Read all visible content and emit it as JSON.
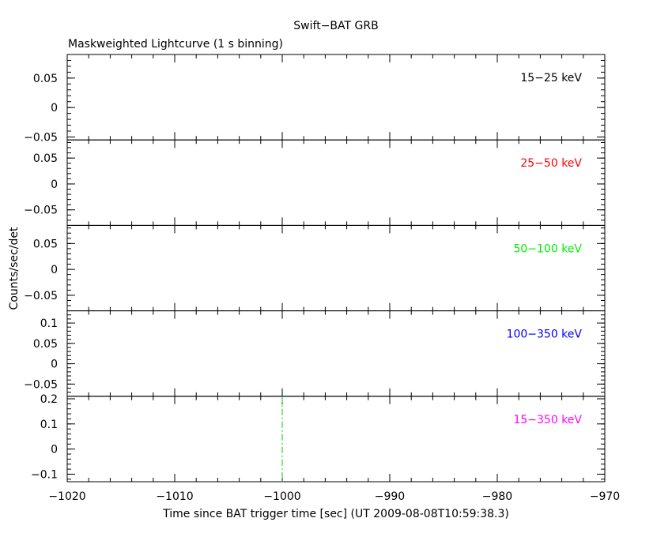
{
  "chart_data": {
    "type": "line",
    "title": "Swift−BAT GRB",
    "subtitle": "Maskweighted Lightcurve (1 s binning)",
    "xlabel": "Time since BAT trigger time [sec] (UT 2009-08-08T10:59:38.3)",
    "ylabel": "Counts/sec/det",
    "xlim": [
      -1020,
      -970
    ],
    "x_ticks": [
      -1020,
      -1010,
      -1000,
      -990,
      -980,
      -970
    ],
    "x_tick_labels": [
      "−1020",
      "−1010",
      "−1000",
      "−990",
      "−980",
      "−970"
    ],
    "trigger_marker": {
      "x": -1000,
      "color": "#00cc00",
      "style": "dash-dot"
    },
    "panels": [
      {
        "band": "15−25 keV",
        "color": "#000000",
        "ylim": [
          -0.055,
          0.09
        ],
        "ticks": [
          0.05,
          0,
          -0.05
        ],
        "tick_labels": [
          "0.05",
          "0",
          "−0.05"
        ],
        "values": []
      },
      {
        "band": "25−50 keV",
        "color": "#ff0000",
        "ylim": [
          -0.08,
          0.085
        ],
        "ticks": [
          0.05,
          0,
          -0.05
        ],
        "tick_labels": [
          "0.05",
          "0",
          "−0.05"
        ],
        "values": []
      },
      {
        "band": "50−100 keV",
        "color": "#00ee00",
        "ylim": [
          -0.08,
          0.085
        ],
        "ticks": [
          0.05,
          0,
          -0.05
        ],
        "tick_labels": [
          "0.05",
          "0",
          "−0.05"
        ],
        "values": []
      },
      {
        "band": "100−350 keV",
        "color": "#0000ff",
        "ylim": [
          -0.08,
          0.13
        ],
        "ticks": [
          0.1,
          0.05,
          0,
          -0.05
        ],
        "tick_labels": [
          "0.1",
          "0.05",
          "0",
          "−0.05"
        ],
        "values": []
      },
      {
        "band": "15−350 keV",
        "color": "#ff00ff",
        "ylim": [
          -0.13,
          0.21
        ],
        "ticks": [
          0.2,
          0.1,
          0,
          -0.1
        ],
        "tick_labels": [
          "0.2",
          "0.1",
          "0",
          "−0.1"
        ],
        "values": []
      }
    ]
  }
}
